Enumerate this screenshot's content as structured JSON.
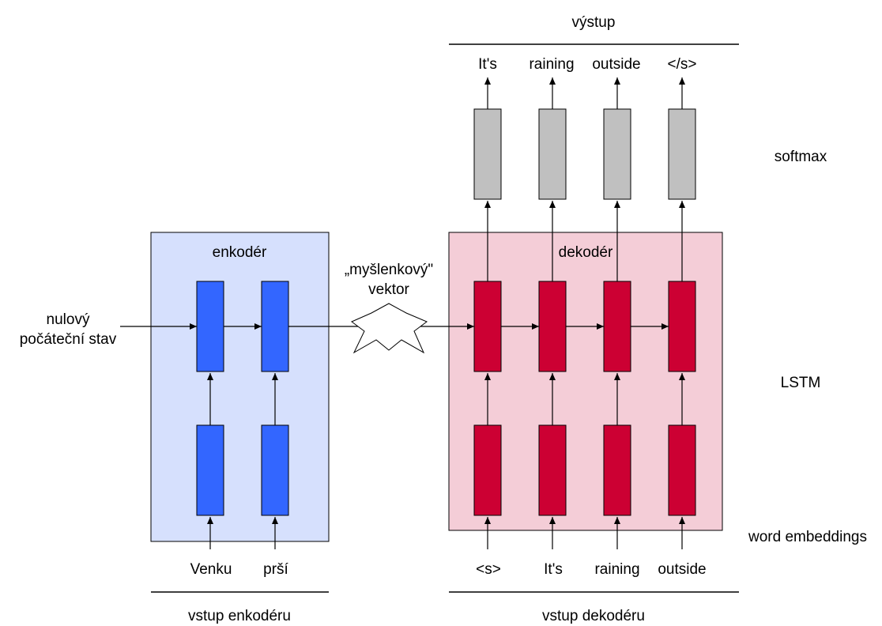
{
  "colors": {
    "encoder_bg": "#d6e0fd",
    "decoder_bg": "#f4cdd7",
    "encoder_cell": "#3366ff",
    "decoder_cell": "#cc0033",
    "softmax_cell": "#c0c0c0",
    "stroke": "#000000"
  },
  "encoder": {
    "title": "enkodér",
    "inputs": [
      "Venku",
      "prší"
    ],
    "section_label": "vstup enkodéru"
  },
  "decoder": {
    "title": "dekodér",
    "inputs": [
      "<s>",
      "It's",
      "raining",
      "outside"
    ],
    "outputs": [
      "It's",
      "raining",
      "outside",
      "</s>"
    ],
    "section_label": "vstup dekodéru",
    "output_label": "výstup"
  },
  "initial_state": [
    "nulový",
    "počáteční stav"
  ],
  "thought_vector": [
    "„myšlenkový\"",
    "vektor"
  ],
  "layers": {
    "softmax": "softmax",
    "lstm": "LSTM",
    "embeddings": "word embeddings"
  }
}
